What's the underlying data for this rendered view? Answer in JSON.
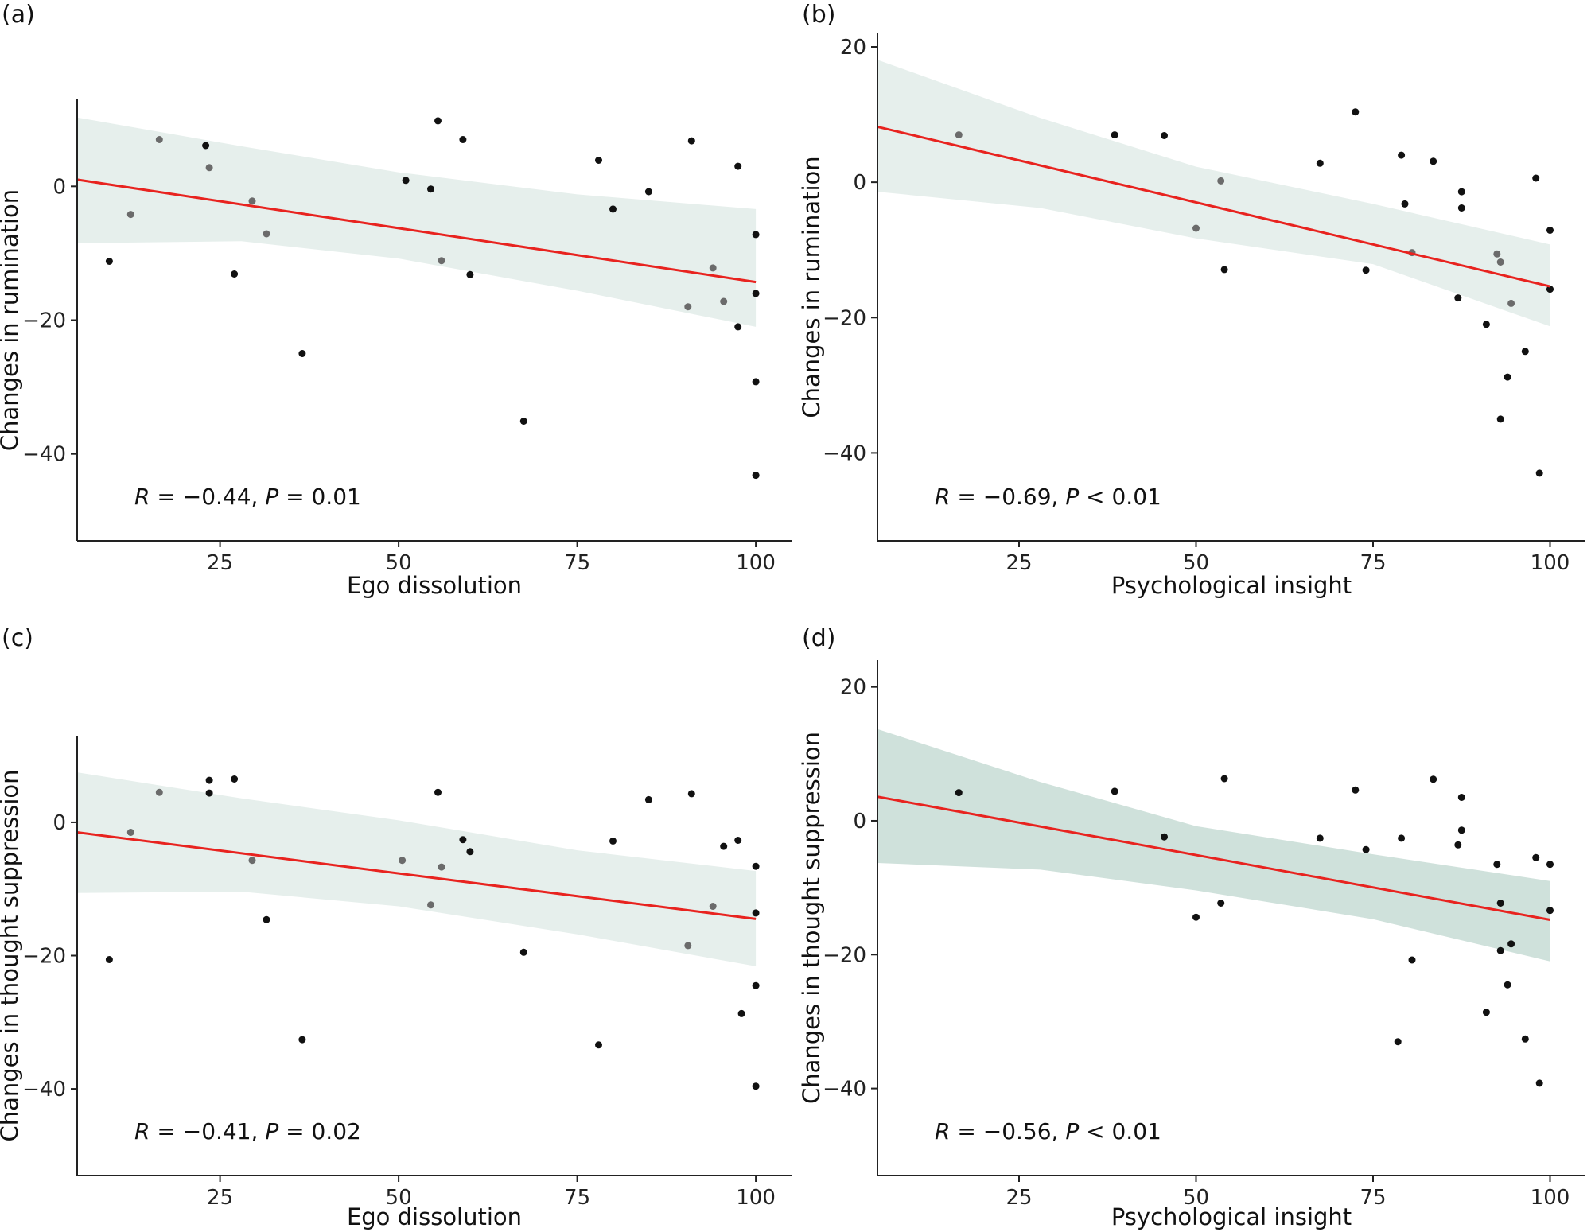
{
  "chart_data": [
    {
      "type": "scatter",
      "panel": "(a)",
      "xlabel": "Ego dissolution",
      "ylabel": "Changes in rumination",
      "xlim": [
        5,
        105
      ],
      "ylim": [
        -53,
        13
      ],
      "xticks": [
        25,
        50,
        75,
        100
      ],
      "yticks": [
        -40,
        -20,
        0
      ],
      "stat": {
        "r": "R = −0.44, ",
        "p": "P = 0.01"
      },
      "fit": {
        "x": [
          5,
          100
        ],
        "y": [
          1.0,
          -14.3
        ]
      },
      "band": {
        "x": [
          5,
          28,
          50,
          75,
          100
        ],
        "upper": [
          10.3,
          6.0,
          2.1,
          -1.2,
          -3.4
        ],
        "lower": [
          -8.5,
          -8.2,
          -10.8,
          -15.6,
          -21.0
        ]
      },
      "band_color": "#e6efec",
      "line_color": "#e8231f",
      "points": {
        "x": [
          9.5,
          12.5,
          16.5,
          23,
          23.5,
          27,
          29.5,
          31.5,
          36.5,
          51,
          54.5,
          55.5,
          56,
          59,
          60,
          67.5,
          78,
          80,
          85,
          90.5,
          91,
          94,
          95.5,
          97.5,
          97.5,
          100,
          100,
          100,
          100
        ],
        "y": [
          -11.2,
          -4.2,
          7.0,
          6.1,
          2.8,
          -13.1,
          -2.2,
          -7.1,
          -25.0,
          0.9,
          -0.4,
          9.8,
          -11.1,
          7.0,
          -13.2,
          -35.1,
          3.9,
          -3.4,
          -0.8,
          -18.0,
          6.8,
          -12.2,
          -17.2,
          -21.0,
          3.0,
          -7.2,
          -16.0,
          -29.2,
          -43.2
        ],
        "gray": [
          false,
          true,
          true,
          false,
          true,
          false,
          true,
          true,
          false,
          false,
          false,
          false,
          true,
          false,
          false,
          false,
          false,
          false,
          false,
          true,
          false,
          true,
          true,
          false,
          false,
          false,
          false,
          false,
          false
        ]
      }
    },
    {
      "type": "scatter",
      "panel": "(b)",
      "xlabel": "Psychological insight",
      "ylabel": "Changes in rumination",
      "xlim": [
        5,
        105
      ],
      "ylim": [
        -53,
        22
      ],
      "xticks": [
        25,
        50,
        75,
        100
      ],
      "yticks": [
        -40,
        -20,
        0,
        20
      ],
      "stat": {
        "r": "R = −0.69, ",
        "p": "P < 0.01"
      },
      "fit": {
        "x": [
          5,
          100
        ],
        "y": [
          8.2,
          -15.4
        ]
      },
      "band": {
        "x": [
          5,
          28,
          50,
          75,
          100
        ],
        "upper": [
          18.1,
          9.5,
          2.3,
          -3.2,
          -9.2
        ],
        "lower": [
          -1.4,
          -3.8,
          -8.3,
          -12.1,
          -21.3
        ]
      },
      "band_color": "#e6efec",
      "line_color": "#e8231f",
      "points": {
        "x": [
          16.5,
          38.5,
          45.5,
          50,
          53.5,
          54,
          67.5,
          72.5,
          74,
          79,
          79.5,
          80.5,
          83.5,
          87,
          87.5,
          87.5,
          91,
          92.5,
          93,
          93,
          94,
          94.5,
          96.5,
          98,
          98.5,
          100,
          100
        ],
        "y": [
          7.0,
          7.0,
          6.9,
          -6.8,
          0.2,
          -12.9,
          2.8,
          10.4,
          -13.0,
          4.0,
          -3.2,
          -10.4,
          3.1,
          -17.1,
          -1.4,
          -3.8,
          -21.0,
          -10.6,
          -11.8,
          -35.0,
          -28.8,
          -17.9,
          -25.0,
          0.6,
          -43.0,
          -7.1,
          -15.8
        ],
        "gray": [
          true,
          false,
          false,
          true,
          true,
          false,
          false,
          false,
          false,
          false,
          false,
          true,
          false,
          false,
          false,
          false,
          false,
          true,
          true,
          false,
          false,
          true,
          false,
          false,
          false,
          false,
          false
        ]
      }
    },
    {
      "type": "scatter",
      "panel": "(c)",
      "xlabel": "Ego dissolution",
      "ylabel": "Changes in thought suppression",
      "xlim": [
        5,
        105
      ],
      "ylim": [
        -53,
        13
      ],
      "xticks": [
        25,
        50,
        75,
        100
      ],
      "yticks": [
        -40,
        -20,
        0
      ],
      "stat": {
        "r": "R = −0.41, ",
        "p": "P = 0.02"
      },
      "fit": {
        "x": [
          5,
          100
        ],
        "y": [
          -1.5,
          -14.5
        ]
      },
      "band": {
        "x": [
          5,
          28,
          50,
          75,
          100
        ],
        "upper": [
          7.5,
          3.6,
          0.3,
          -4.2,
          -7.3
        ],
        "lower": [
          -10.6,
          -10.4,
          -12.6,
          -16.8,
          -21.6
        ]
      },
      "band_color": "#e6efec",
      "line_color": "#e8231f",
      "points": {
        "x": [
          9.5,
          12.5,
          16.5,
          23.5,
          23.5,
          27,
          29.5,
          31.5,
          36.5,
          50.5,
          54.5,
          55.5,
          56,
          59,
          60,
          67.5,
          78,
          80,
          85,
          90.5,
          91,
          94,
          95.5,
          97.5,
          98,
          100,
          100,
          100,
          100
        ],
        "y": [
          -20.6,
          -1.5,
          4.5,
          6.3,
          4.4,
          6.5,
          -5.7,
          -14.6,
          -32.6,
          -5.7,
          -12.4,
          4.5,
          -6.7,
          -2.6,
          -4.4,
          -19.5,
          -33.4,
          -2.8,
          3.4,
          -18.5,
          4.3,
          -12.6,
          -3.6,
          -2.7,
          -28.7,
          -6.6,
          -13.6,
          -24.5,
          -39.6
        ],
        "gray": [
          false,
          true,
          true,
          false,
          false,
          false,
          true,
          false,
          false,
          true,
          true,
          false,
          true,
          false,
          false,
          false,
          false,
          false,
          false,
          true,
          false,
          true,
          false,
          false,
          false,
          false,
          false,
          false,
          false
        ]
      }
    },
    {
      "type": "scatter",
      "panel": "(d)",
      "xlabel": "Psychological insight",
      "ylabel": "Changes in thought suppression",
      "xlim": [
        5,
        105
      ],
      "ylim": [
        -53,
        24
      ],
      "xticks": [
        25,
        50,
        75,
        100
      ],
      "yticks": [
        -40,
        -20,
        0,
        20
      ],
      "stat": {
        "r": "R = −0.56, ",
        "p": "P < 0.01"
      },
      "fit": {
        "x": [
          5,
          100
        ],
        "y": [
          3.6,
          -14.8
        ]
      },
      "band": {
        "x": [
          5,
          28,
          50,
          75,
          100
        ],
        "upper": [
          13.7,
          5.8,
          -0.8,
          -5.0,
          -9.0
        ],
        "lower": [
          -6.3,
          -7.3,
          -10.4,
          -14.7,
          -21.0
        ]
      },
      "band_color": "#cfe1db",
      "line_color": "#e8231f",
      "points": {
        "x": [
          16.5,
          38.5,
          45.5,
          50,
          53.5,
          54,
          67.5,
          72.5,
          74,
          78.5,
          79,
          80.5,
          83.5,
          87,
          87.5,
          87.5,
          91,
          92.5,
          93,
          93,
          94,
          94.5,
          96.5,
          98,
          98.5,
          100,
          100
        ],
        "y": [
          4.2,
          4.4,
          -2.4,
          -14.4,
          -12.3,
          6.3,
          -2.6,
          4.6,
          -4.3,
          -33.0,
          -2.6,
          -20.8,
          6.2,
          -3.6,
          3.5,
          -1.4,
          -28.6,
          -6.5,
          -12.3,
          -19.4,
          -24.5,
          -18.4,
          -32.6,
          -5.5,
          -39.2,
          -6.5,
          -13.4
        ],
        "gray": [
          false,
          false,
          false,
          false,
          false,
          false,
          false,
          false,
          false,
          false,
          false,
          false,
          false,
          false,
          false,
          false,
          false,
          false,
          false,
          false,
          false,
          false,
          false,
          false,
          false,
          false,
          false
        ]
      }
    }
  ]
}
